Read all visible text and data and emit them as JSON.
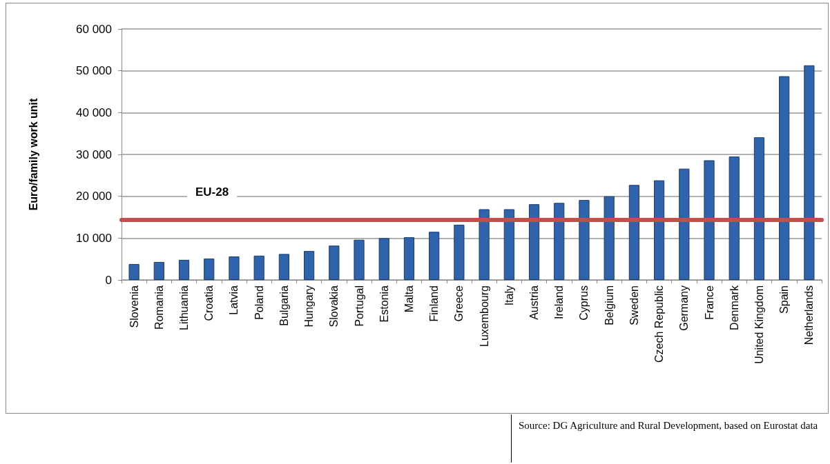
{
  "chart_data": {
    "type": "bar",
    "ylabel": "Euro/family work unit",
    "categories": [
      "Slovenia",
      "Romania",
      "Lithuania",
      "Croatia",
      "Latvia",
      "Poland",
      "Bulgaria",
      "Hungary",
      "Slovakia",
      "Portugal",
      "Estonia",
      "Malta",
      "Finland",
      "Greece",
      "Luxembourg",
      "Italy",
      "Austria",
      "Ireland",
      "Cyprus",
      "Belgium",
      "Sweden",
      "Czech Republic",
      "Germany",
      "France",
      "Denmark",
      "United Kingdom",
      "Spain",
      "Netherlands"
    ],
    "values": [
      3800,
      4300,
      4800,
      5100,
      5600,
      5800,
      6200,
      6900,
      8200,
      9600,
      10000,
      10200,
      11500,
      13200,
      16900,
      16900,
      18100,
      18400,
      19100,
      20000,
      22700,
      23800,
      26600,
      28600,
      29500,
      34100,
      48700,
      51300
    ],
    "color": "#2f64ad",
    "ylim": [
      0,
      60000
    ],
    "yticks": [
      {
        "value": 0,
        "label": "0"
      },
      {
        "value": 10000,
        "label": "10 000"
      },
      {
        "value": 20000,
        "label": "20 000"
      },
      {
        "value": 30000,
        "label": "30 000"
      },
      {
        "value": 40000,
        "label": "40 000"
      },
      {
        "value": 50000,
        "label": "50 000"
      },
      {
        "value": 60000,
        "label": "60 000"
      }
    ],
    "grid": "y",
    "ref_lines": [
      {
        "axis": "y",
        "value": 14400,
        "label": "EU-28",
        "color": "#c0504d"
      }
    ],
    "annotations": [
      "Source: DG Agriculture and Rural Development, based on Eurostat data"
    ]
  }
}
